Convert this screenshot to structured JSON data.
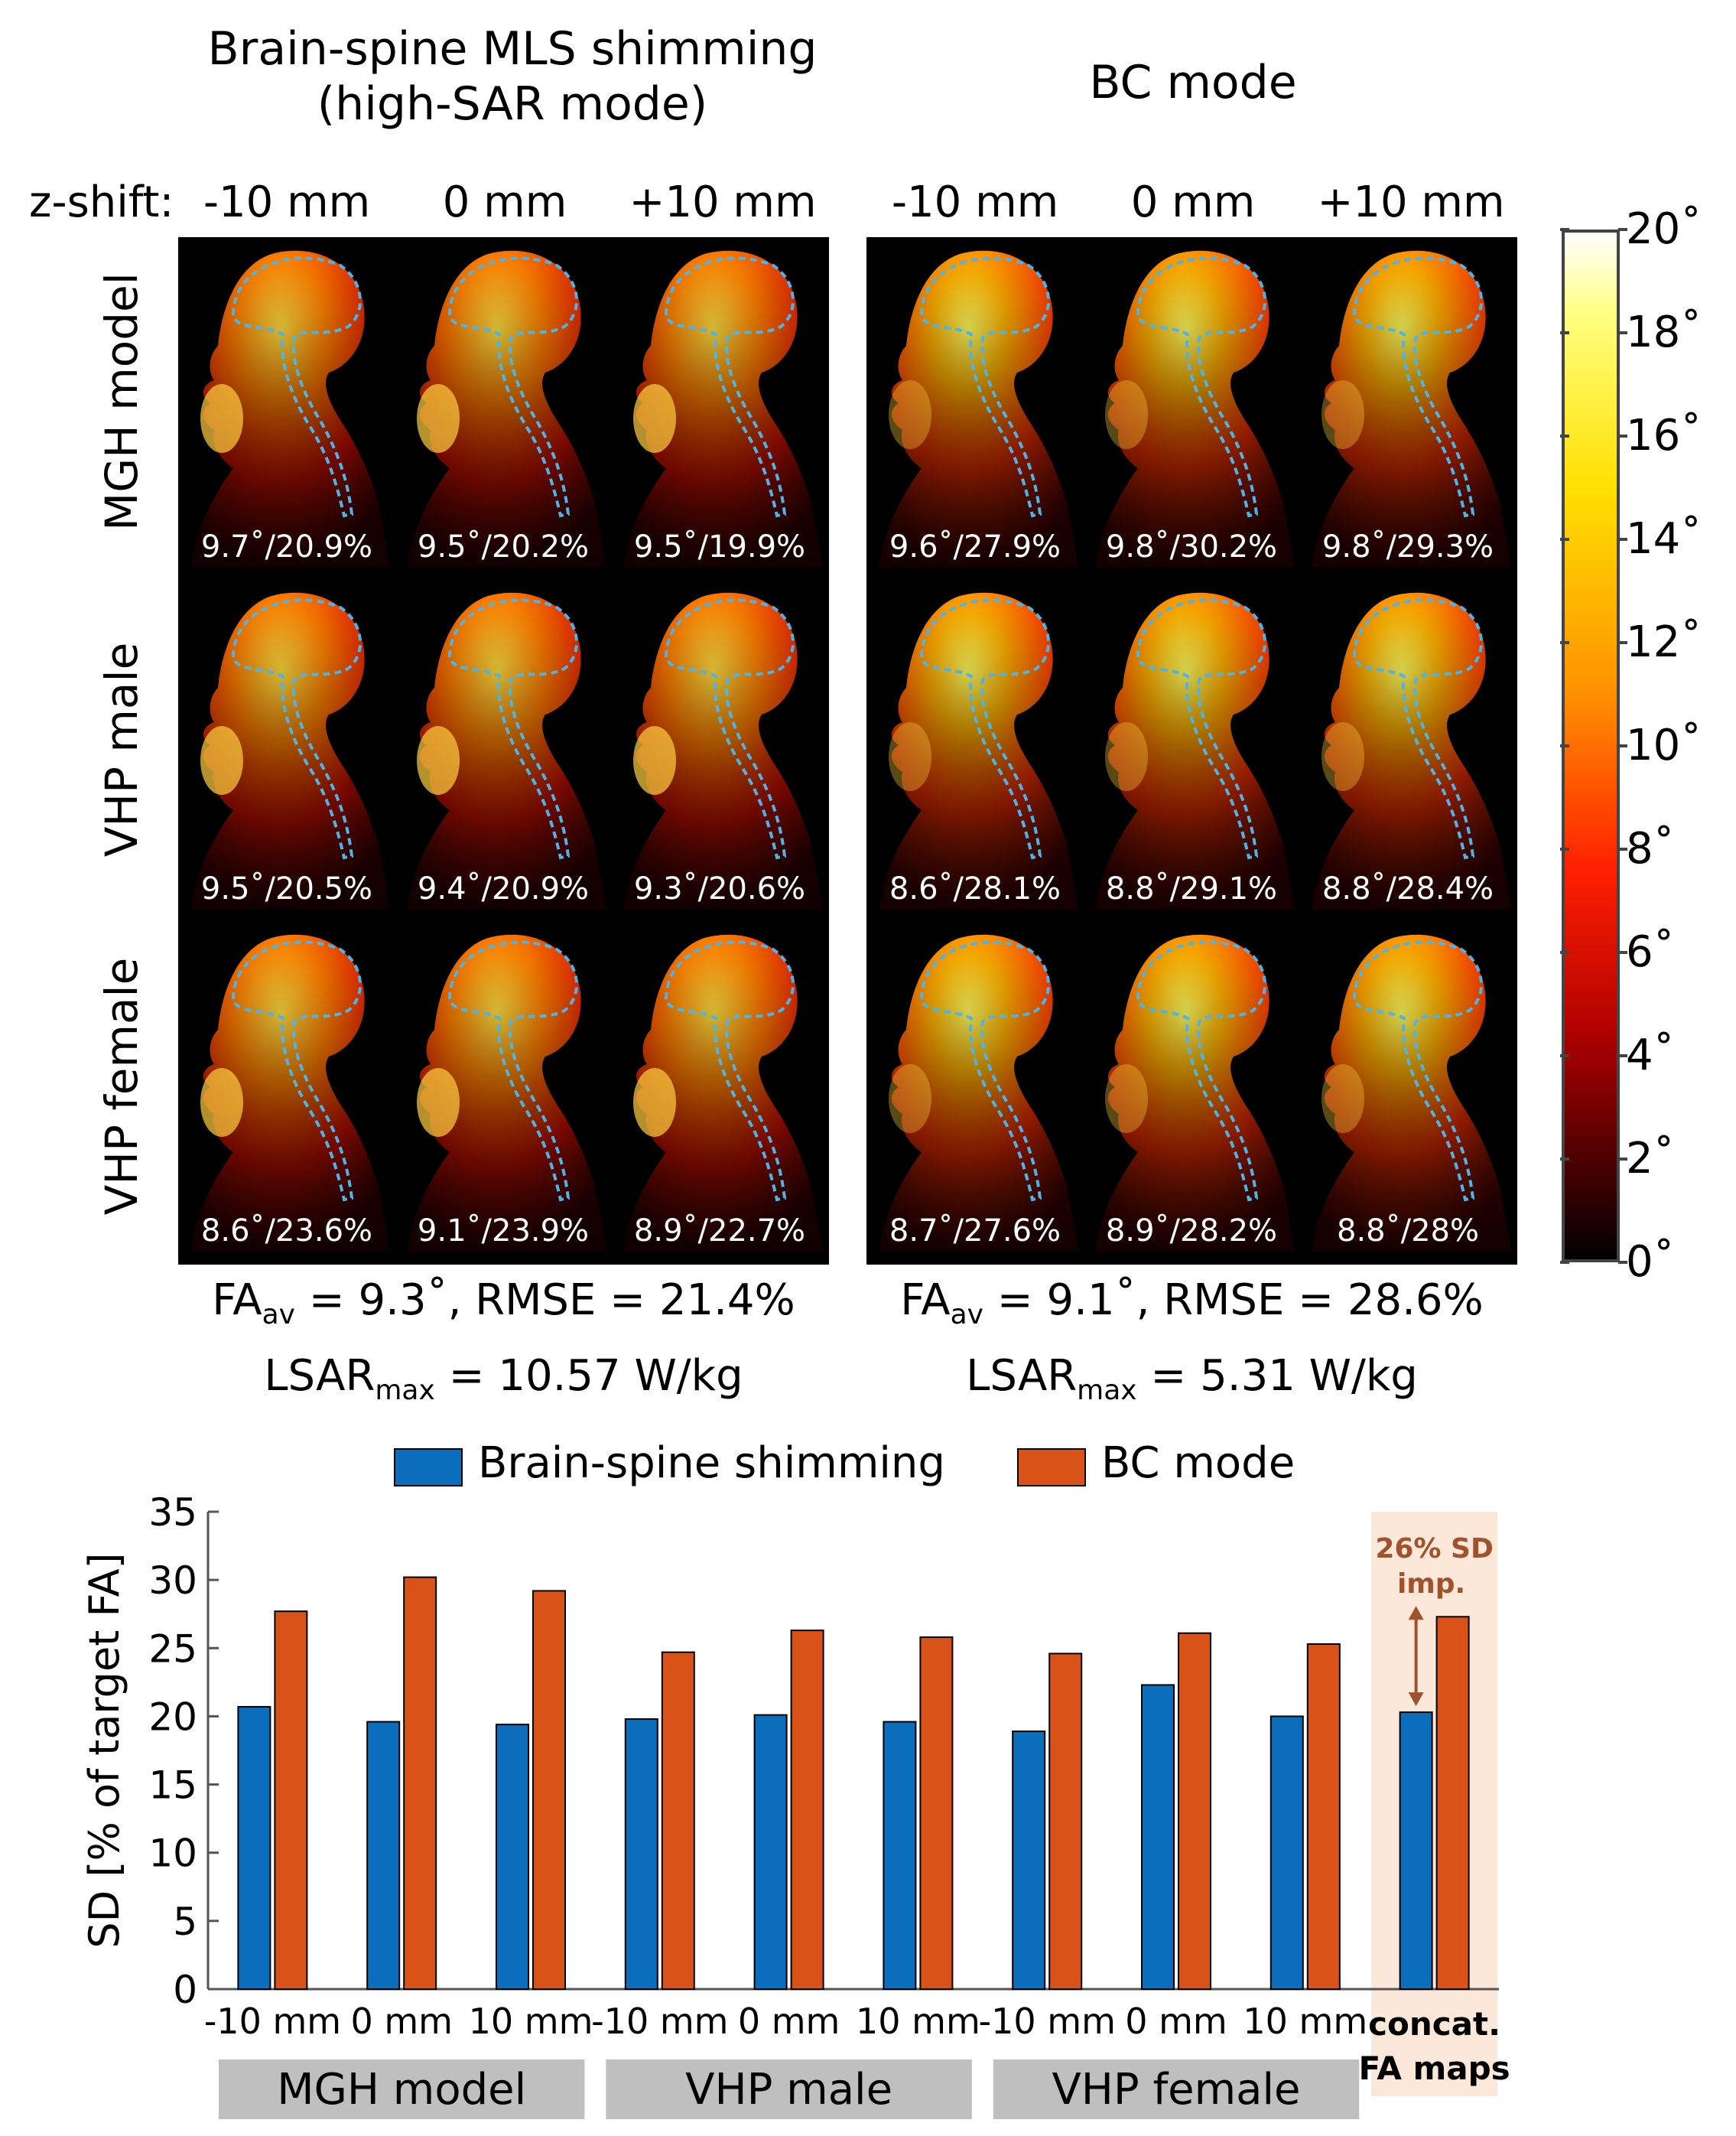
{
  "top": {
    "title_left": [
      "Brain-spine MLS shimming",
      "(high-SAR mode)"
    ],
    "title_right": "BC mode",
    "zshift_label": "z-shift:",
    "shifts": [
      "-10 mm",
      "0 mm",
      "+10 mm"
    ],
    "models": [
      "MGH model",
      "VHP male",
      "VHP female"
    ],
    "left_metrics": [
      [
        "9.7˚/20.9%",
        "9.5˚/20.2%",
        "9.5˚/19.9%"
      ],
      [
        "9.5˚/20.5%",
        "9.4˚/20.9%",
        "9.3˚/20.6%"
      ],
      [
        "8.6˚/23.6%",
        "9.1˚/23.9%",
        "8.9˚/22.7%"
      ]
    ],
    "right_metrics": [
      [
        "9.6˚/27.9%",
        "9.8˚/30.2%",
        "9.8˚/29.3%"
      ],
      [
        "8.6˚/28.1%",
        "8.8˚/29.1%",
        "8.8˚/28.4%"
      ],
      [
        "8.7˚/27.6%",
        "8.9˚/28.2%",
        "8.8˚/28%"
      ]
    ],
    "left_summary": {
      "fa_prefix": "FA",
      "fa_sub": "av",
      "fa_rest": " = 9.3˚, RMSE = 21.4%",
      "lsar_prefix": "LSAR",
      "lsar_sub": "max",
      "lsar_rest": " = 10.57 W/kg"
    },
    "right_summary": {
      "fa_prefix": "FA",
      "fa_sub": "av",
      "fa_rest": " = 9.1˚, RMSE = 28.6%",
      "lsar_prefix": "LSAR",
      "lsar_sub": "max",
      "lsar_rest": " = 5.31 W/kg"
    },
    "colorbar": {
      "ticks": [
        "20˚",
        "18˚",
        "16˚",
        "14˚",
        "12˚",
        "10˚",
        "8˚",
        "6˚",
        "4˚",
        "2˚",
        "0˚"
      ]
    }
  },
  "colors": {
    "blue": "#0a6ebd",
    "orange": "#d95319",
    "highlight": "#fbe8d8",
    "group_box": "#bfbfbf",
    "annotation": "#a0522d",
    "outline": "#4fb3e8"
  },
  "chart_data": {
    "type": "bar",
    "ylabel": "SD [% of target FA]",
    "ylim": [
      0,
      35
    ],
    "yticks": [
      0,
      5,
      10,
      15,
      20,
      25,
      30,
      35
    ],
    "categories": [
      "-10 mm",
      "0 mm",
      "10 mm",
      "-10 mm",
      "0 mm",
      "10 mm",
      "-10 mm",
      "0 mm",
      "10 mm",
      "concat. FA maps"
    ],
    "groups": [
      "MGH model",
      "VHP male",
      "VHP female"
    ],
    "series": [
      {
        "name": "Brain-spine shimming",
        "values": [
          20.7,
          19.6,
          19.4,
          19.8,
          20.1,
          19.6,
          18.9,
          22.3,
          20.0,
          20.3
        ]
      },
      {
        "name": "BC mode",
        "values": [
          27.7,
          30.2,
          29.2,
          24.7,
          26.3,
          25.8,
          24.6,
          26.1,
          25.3,
          27.3
        ]
      }
    ],
    "annotation": [
      "26% SD",
      "imp."
    ],
    "last_category_lines": [
      "concat.",
      "FA maps"
    ]
  }
}
